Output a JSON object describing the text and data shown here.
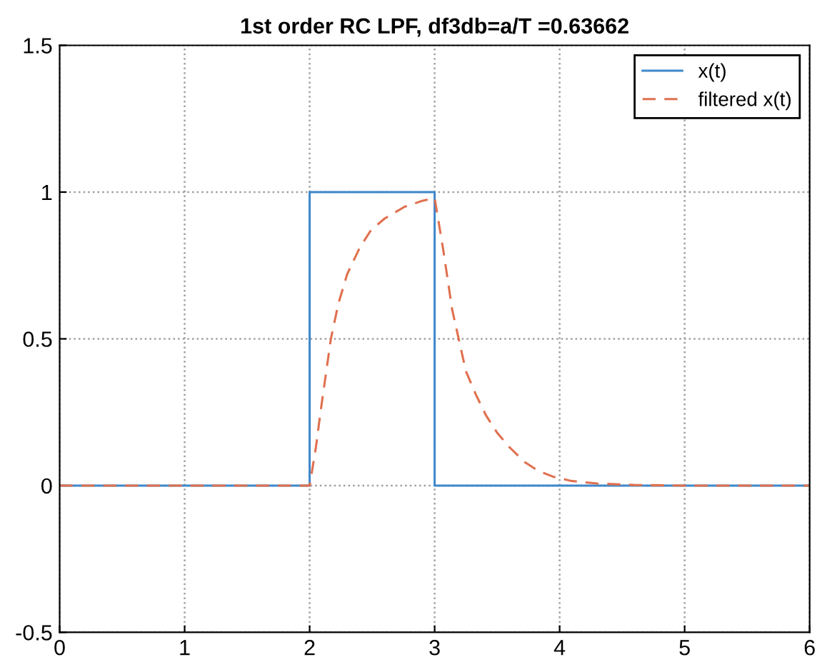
{
  "chart_data": {
    "type": "line",
    "title": "1st order RC LPF, df3db=a/T =0.63662",
    "series": [
      {
        "name": "x(t)",
        "color": "#3f88cc",
        "line_style": "solid",
        "x": [
          0,
          2,
          2,
          3,
          3,
          6
        ],
        "values": [
          0,
          0,
          1,
          1,
          0,
          0
        ]
      },
      {
        "name": "filtered x(t)",
        "color": "#e0704f",
        "line_style": "dashed",
        "x": [
          0,
          2.0,
          2.05,
          2.09,
          2.13,
          2.17,
          2.23,
          2.3,
          2.4,
          2.49,
          2.6,
          2.76,
          2.9,
          3.0,
          3.07,
          3.14,
          3.25,
          3.33,
          3.41,
          3.5,
          3.6,
          3.72,
          3.83,
          3.95,
          4.09,
          4.3,
          4.6,
          5.0,
          6
        ],
        "values": [
          0,
          0,
          0.13,
          0.26,
          0.38,
          0.5,
          0.62,
          0.72,
          0.81,
          0.87,
          0.91,
          0.95,
          0.97,
          0.98,
          0.8,
          0.6,
          0.39,
          0.31,
          0.24,
          0.18,
          0.13,
          0.08,
          0.05,
          0.03,
          0.016,
          0.007,
          0.002,
          0,
          0
        ]
      }
    ],
    "xlim": [
      0,
      6
    ],
    "xticks": [
      0,
      1,
      2,
      3,
      4,
      5,
      6
    ],
    "ylim": [
      -0.5,
      1.5
    ],
    "yticks": [
      -0.5,
      0,
      0.5,
      1,
      1.5
    ],
    "grid": true,
    "legend": "top right"
  }
}
